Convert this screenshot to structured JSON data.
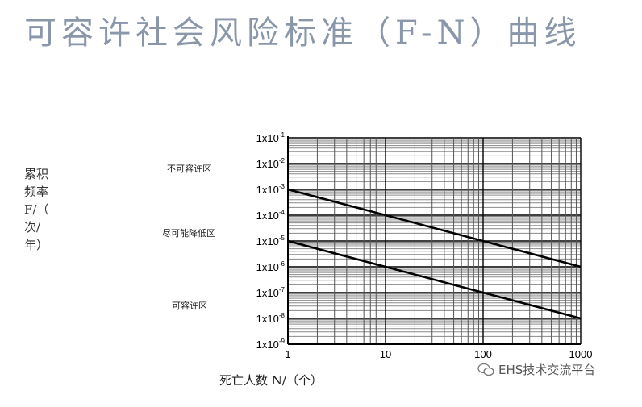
{
  "title": "可容许社会风险标准（F-N）曲线",
  "ylabel_lines": [
    "累积",
    "频率",
    "F/（",
    "次/",
    "年）"
  ],
  "zones": [
    "不可容许区",
    "尽可能降低区",
    "可容许区"
  ],
  "xlabel": "死亡人数 N/（个）",
  "watermark": "EHS技术交流平台",
  "chart_data": {
    "type": "line",
    "title": "可容许社会风险标准（F-N）曲线",
    "xlabel": "死亡人数 N/（个）",
    "ylabel": "累积频率F/（次/年）",
    "xscale": "log",
    "yscale": "log",
    "xlim": [
      1,
      1000
    ],
    "ylim": [
      1e-09,
      0.1
    ],
    "grid": true,
    "x_ticks": [
      "1",
      "10",
      "100",
      "1000"
    ],
    "y_ticks": [
      {
        "base": "1x10",
        "exp": "-1"
      },
      {
        "base": "1x10",
        "exp": "-2"
      },
      {
        "base": "1x10",
        "exp": "-3"
      },
      {
        "base": "1x10",
        "exp": "-4"
      },
      {
        "base": "1x10",
        "exp": "-5"
      },
      {
        "base": "1x10",
        "exp": "-6"
      },
      {
        "base": "1x10",
        "exp": "-7"
      },
      {
        "base": "1x10",
        "exp": "-8"
      },
      {
        "base": "1x10",
        "exp": "-9"
      }
    ],
    "series": [
      {
        "x": [
          1,
          1000
        ],
        "y": [
          0.001,
          1e-06
        ]
      },
      {
        "x": [
          1,
          1000
        ],
        "y": [
          1e-05,
          1e-08
        ]
      }
    ],
    "annotations": [
      "不可容许区",
      "尽可能降低区",
      "可容许区"
    ],
    "color": "#000000"
  }
}
